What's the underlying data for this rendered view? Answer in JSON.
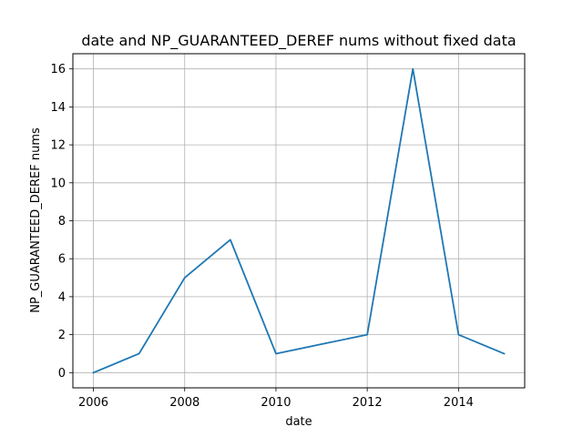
{
  "chart_data": {
    "type": "line",
    "title": "date and NP_GUARANTEED_DEREF nums without fixed data",
    "xlabel": "date",
    "ylabel": "NP_GUARANTEED_DEREF nums",
    "x": [
      2006,
      2007,
      2008,
      2009,
      2010,
      2011,
      2012,
      2013,
      2014,
      2015
    ],
    "series": [
      {
        "values": [
          0,
          1,
          5,
          7,
          1,
          1.5,
          2,
          16,
          2,
          1
        ],
        "color": "#1f77b4"
      }
    ],
    "xlim": [
      2005.55,
      2015.45
    ],
    "ylim": [
      -0.8,
      16.8
    ],
    "xticks": [
      "2006",
      "2008",
      "2010",
      "2012",
      "2014"
    ],
    "yticks": [
      "0",
      "2",
      "4",
      "6",
      "8",
      "10",
      "12",
      "14",
      "16"
    ],
    "grid": true,
    "grid_color": "#b0b0b0",
    "axis_color": "#000000"
  }
}
